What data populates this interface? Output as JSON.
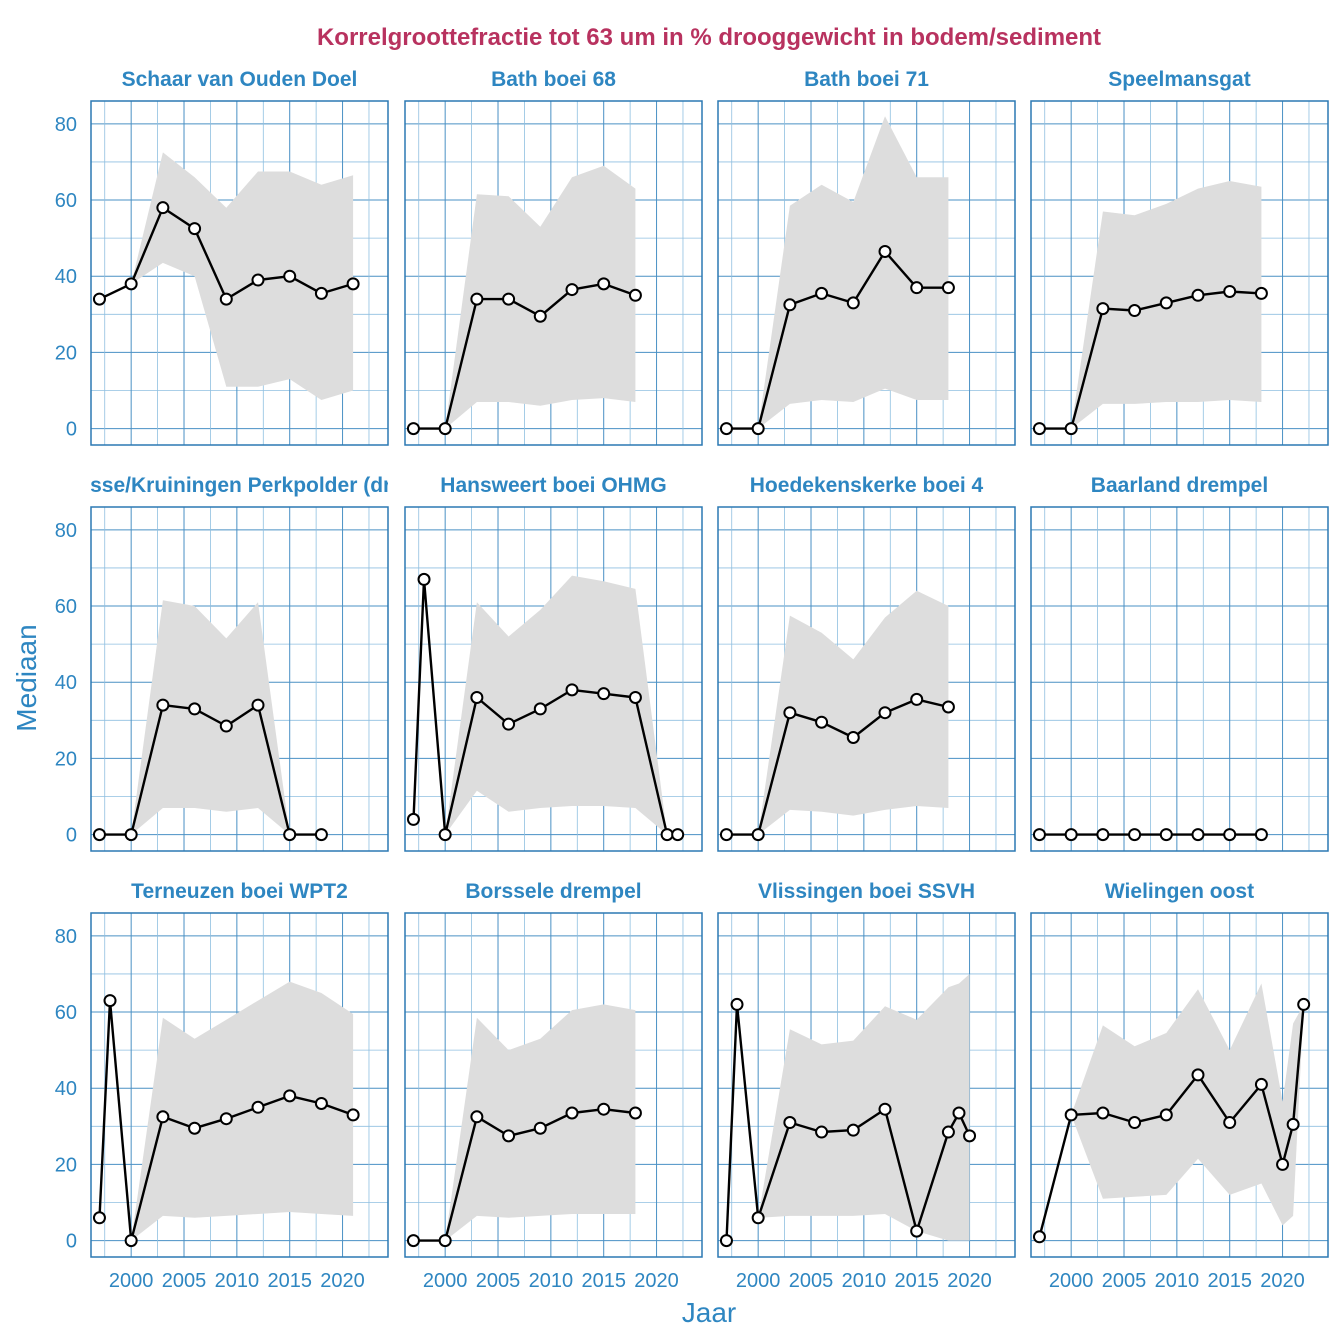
{
  "chart_data": {
    "type": "line",
    "title": "Korrelgroottefractie tot 63 um in % drooggewicht in bodem/sediment",
    "xlabel": "Jaar",
    "ylabel": "Mediaan",
    "xlim": [
      1996.2,
      2024.3
    ],
    "ylim": [
      -4.3,
      86
    ],
    "x_ticks": [
      2000,
      2005,
      2010,
      2015,
      2020
    ],
    "y_ticks": [
      0,
      20,
      40,
      60,
      80
    ],
    "ribbon": "range (grey band) around median",
    "panels": [
      {
        "title": "Schaar van Ouden Doel",
        "x": [
          1997,
          2000,
          2003,
          2006,
          2009,
          2012,
          2015,
          2018,
          2021
        ],
        "y": [
          34,
          38,
          58,
          52.5,
          34,
          39,
          40,
          35.5,
          38
        ],
        "ribbon_x": [
          2000,
          2003,
          2006,
          2009,
          2012,
          2015,
          2018,
          2021
        ],
        "ribbon_low": [
          38,
          43.5,
          40,
          11,
          11,
          13,
          7.5,
          10
        ],
        "ribbon_high": [
          38,
          72.5,
          66,
          58,
          67.5,
          67.5,
          64,
          66.5
        ]
      },
      {
        "title": "Bath boei 68",
        "x": [
          1997,
          2000,
          2003,
          2006,
          2009,
          2012,
          2015,
          2018
        ],
        "y": [
          0,
          0,
          34,
          34,
          29.5,
          36.5,
          38,
          35
        ],
        "ribbon_x": [
          2000,
          2003,
          2006,
          2009,
          2012,
          2015,
          2018
        ],
        "ribbon_low": [
          0,
          7,
          7,
          6,
          7.5,
          8,
          7
        ],
        "ribbon_high": [
          0,
          61.5,
          61,
          53,
          66,
          69,
          63
        ]
      },
      {
        "title": "Bath boei 71",
        "x": [
          1997,
          2000,
          2003,
          2006,
          2009,
          2012,
          2015,
          2018
        ],
        "y": [
          0,
          0,
          32.5,
          35.5,
          33,
          46.5,
          37,
          37
        ],
        "ribbon_x": [
          2000,
          2003,
          2006,
          2009,
          2012,
          2015,
          2018
        ],
        "ribbon_low": [
          0,
          6.5,
          7.5,
          7,
          10.5,
          7.5,
          7.5
        ],
        "ribbon_high": [
          0,
          58.5,
          64,
          59.5,
          82,
          66,
          66
        ]
      },
      {
        "title": "Speelmansgat",
        "x": [
          1997,
          2000,
          2003,
          2006,
          2009,
          2012,
          2015,
          2018
        ],
        "y": [
          0,
          0,
          31.5,
          31,
          33,
          35,
          36,
          35.5
        ],
        "ribbon_x": [
          2000,
          2003,
          2006,
          2009,
          2012,
          2015,
          2018
        ],
        "ribbon_low": [
          0,
          6.5,
          6.5,
          7,
          7,
          7.5,
          7
        ],
        "ribbon_high": [
          0,
          57,
          56,
          59,
          63,
          65,
          63.5
        ]
      },
      {
        "title": "Ossenisse/Kruiningen Perkpolder (drempel)",
        "x": [
          1997,
          2000,
          2003,
          2006,
          2009,
          2012,
          2015,
          2018
        ],
        "y": [
          0,
          0,
          34,
          33,
          28.5,
          34,
          0,
          0
        ],
        "ribbon_x": [
          2000,
          2003,
          2006,
          2009,
          2012,
          2015
        ],
        "ribbon_low": [
          0,
          7,
          7,
          6,
          7,
          0
        ],
        "ribbon_high": [
          0,
          61.5,
          60,
          51.5,
          61,
          0
        ]
      },
      {
        "title": "Hansweert boei OHMG",
        "x": [
          1997,
          1998,
          2000,
          2003,
          2006,
          2009,
          2012,
          2015,
          2018,
          2021,
          2022
        ],
        "y": [
          4,
          67,
          0,
          36,
          29,
          33,
          38,
          37,
          36,
          0,
          0
        ],
        "ribbon_x": [
          2000,
          2003,
          2006,
          2009,
          2012,
          2015,
          2018,
          2021
        ],
        "ribbon_low": [
          0,
          11.5,
          6,
          7,
          7.5,
          7.5,
          7,
          0
        ],
        "ribbon_high": [
          0,
          61,
          52,
          59,
          68,
          66.5,
          64.5,
          0
        ]
      },
      {
        "title": "Hoedekenskerke boei 4",
        "x": [
          1997,
          2000,
          2003,
          2006,
          2009,
          2012,
          2015,
          2018
        ],
        "y": [
          0,
          0,
          32,
          29.5,
          25.5,
          32,
          35.5,
          33.5
        ],
        "ribbon_x": [
          2000,
          2003,
          2006,
          2009,
          2012,
          2015,
          2018
        ],
        "ribbon_low": [
          0,
          6.5,
          6,
          5,
          6.5,
          7.5,
          7
        ],
        "ribbon_high": [
          0,
          57.5,
          53,
          46,
          57,
          64,
          60
        ]
      },
      {
        "title": "Baarland drempel",
        "x": [
          1997,
          2000,
          2003,
          2006,
          2009,
          2012,
          2015,
          2018
        ],
        "y": [
          0,
          0,
          0,
          0,
          0,
          0,
          0,
          0
        ],
        "ribbon_x": [],
        "ribbon_low": [],
        "ribbon_high": []
      },
      {
        "title": "Terneuzen boei WPT2",
        "x": [
          1997,
          1998,
          2000,
          2003,
          2006,
          2009,
          2012,
          2015,
          2018,
          2021
        ],
        "y": [
          6,
          63,
          0,
          32.5,
          29.5,
          32,
          35,
          38,
          36,
          33
        ],
        "ribbon_x": [
          2000,
          2003,
          2006,
          2009,
          2012,
          2015,
          2018,
          2021
        ],
        "ribbon_low": [
          0,
          6.5,
          6,
          6.5,
          7,
          7.5,
          7,
          6.5
        ],
        "ribbon_high": [
          0,
          58.5,
          53,
          58,
          63,
          68,
          65,
          59.5
        ]
      },
      {
        "title": "Borssele drempel",
        "x": [
          1997,
          2000,
          2003,
          2006,
          2009,
          2012,
          2015,
          2018
        ],
        "y": [
          0,
          0,
          32.5,
          27.5,
          29.5,
          33.5,
          34.5,
          33.5
        ],
        "ribbon_x": [
          2000,
          2003,
          2006,
          2009,
          2012,
          2015,
          2018
        ],
        "ribbon_low": [
          0,
          6.5,
          6,
          6.5,
          7,
          7,
          7
        ],
        "ribbon_high": [
          0,
          58.5,
          50,
          53,
          60.5,
          62,
          60.5
        ]
      },
      {
        "title": "Vlissingen boei SSVH",
        "x": [
          1997,
          1998,
          2000,
          2003,
          2006,
          2009,
          2012,
          2015,
          2018,
          2019,
          2020
        ],
        "y": [
          0,
          62,
          6,
          31,
          28.5,
          29,
          34.5,
          2.5,
          28.5,
          33.5,
          27.5
        ],
        "ribbon_x": [
          2000,
          2003,
          2006,
          2009,
          2012,
          2015,
          2018,
          2019,
          2020
        ],
        "ribbon_low": [
          6,
          6.5,
          6.5,
          6.5,
          7,
          2.5,
          0,
          0,
          0
        ],
        "ribbon_high": [
          6,
          55.5,
          51.5,
          52.5,
          61.5,
          58,
          66.5,
          67.5,
          70
        ]
      },
      {
        "title": "Wielingen oost",
        "x": [
          1997,
          2000,
          2003,
          2006,
          2009,
          2012,
          2015,
          2018,
          2020,
          2021,
          2022
        ],
        "y": [
          1,
          33,
          33.5,
          31,
          33,
          43.5,
          31,
          41,
          20,
          30.5,
          62
        ],
        "ribbon_x": [
          2000,
          2003,
          2006,
          2009,
          2012,
          2015,
          2018,
          2020,
          2021,
          2022
        ],
        "ribbon_low": [
          33,
          11,
          11.5,
          12,
          21.5,
          12,
          15,
          4,
          6.5,
          62
        ],
        "ribbon_high": [
          33,
          56.5,
          51,
          54.5,
          66,
          50,
          67.5,
          36.5,
          57,
          62
        ]
      }
    ]
  }
}
